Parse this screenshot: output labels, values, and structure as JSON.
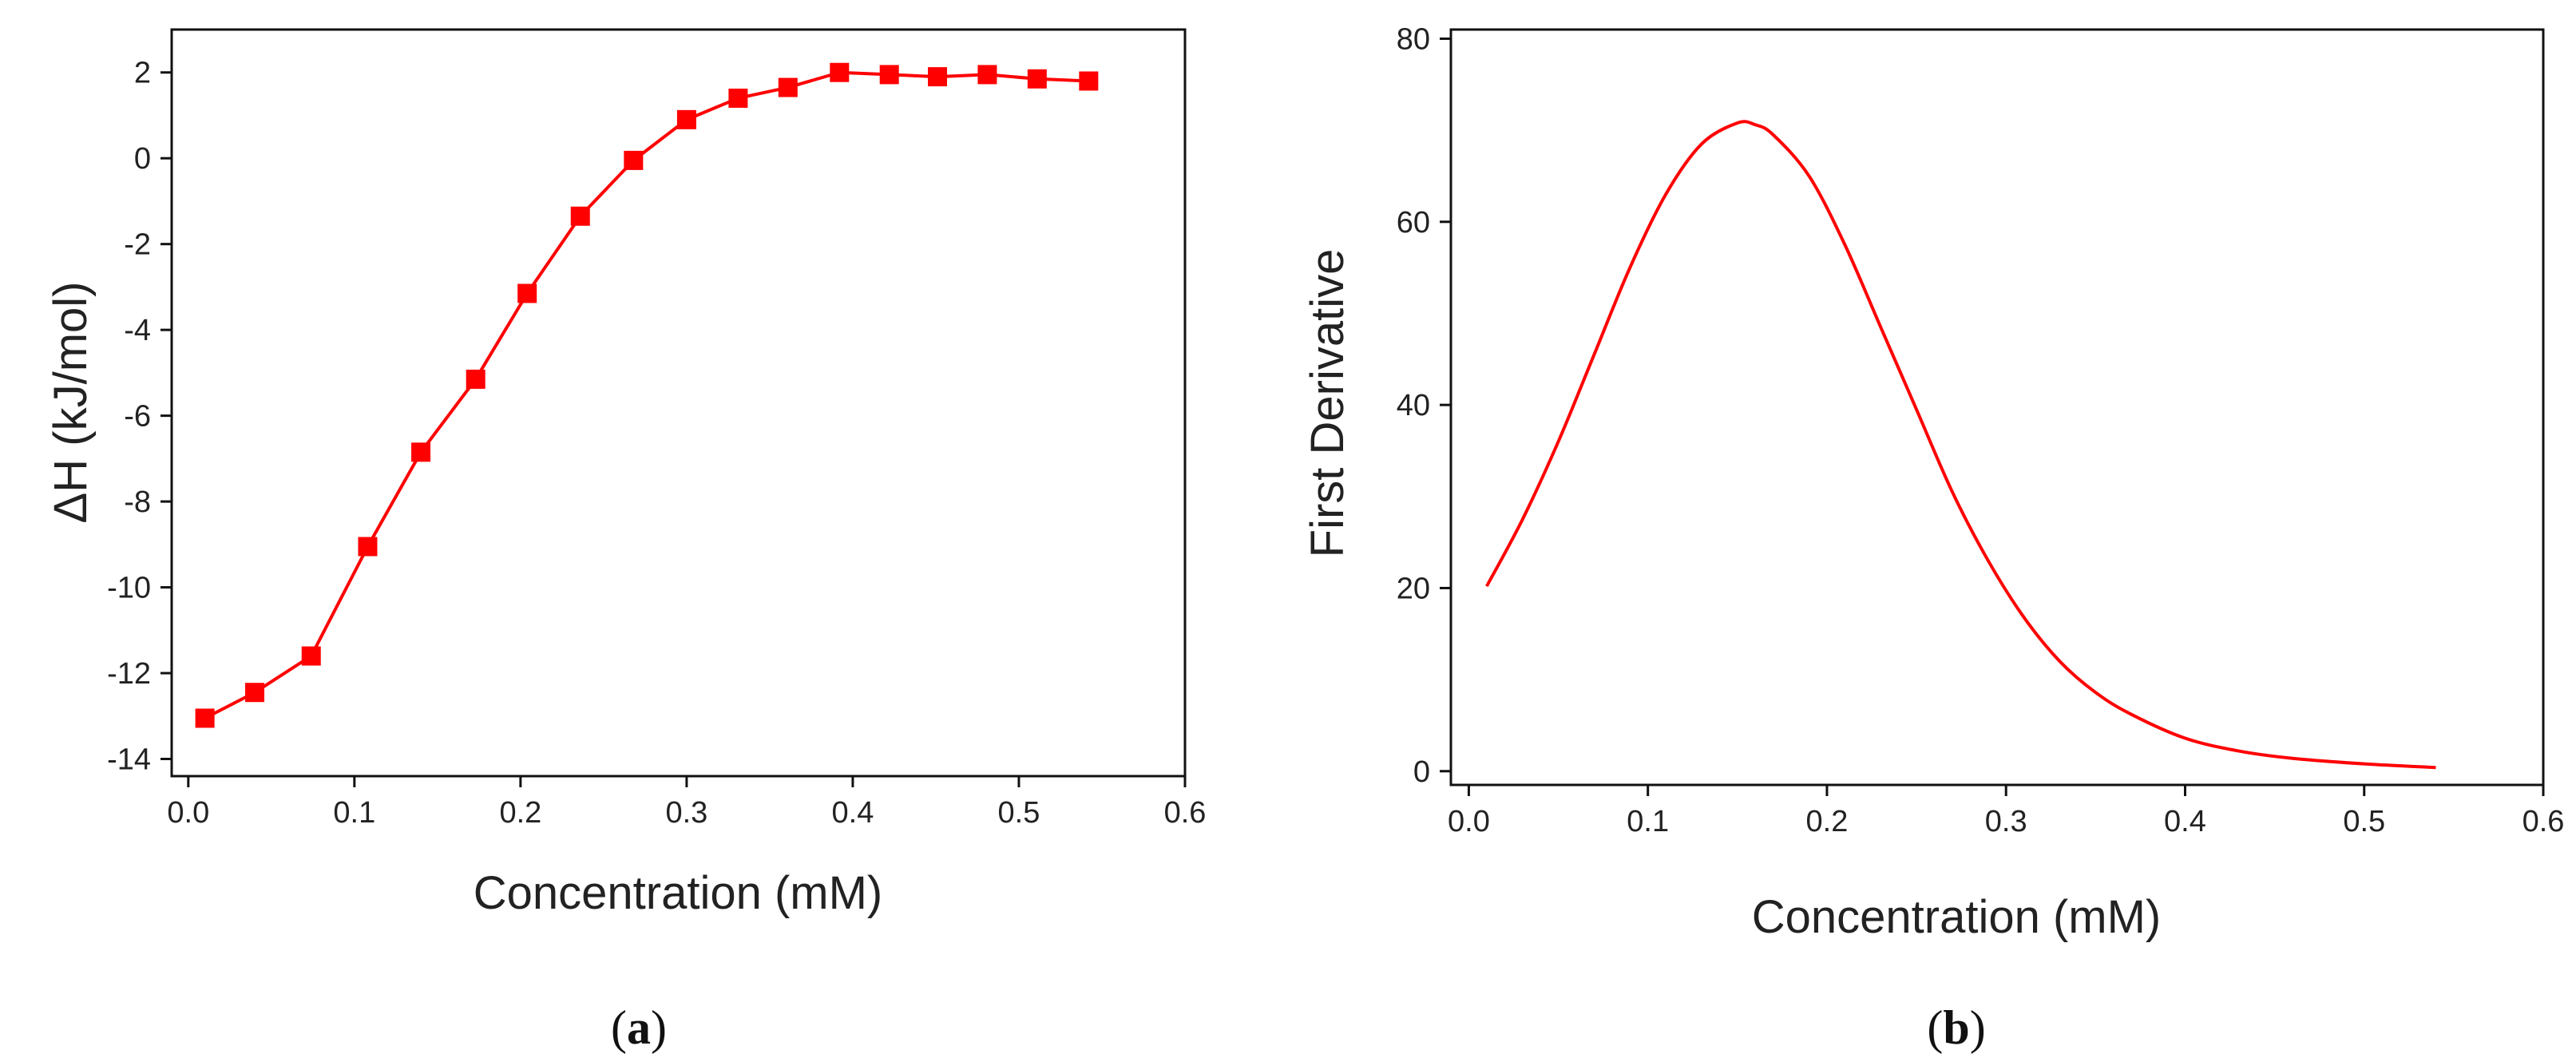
{
  "chart_data": [
    {
      "type": "line",
      "panel_label": "a",
      "xlabel": "Concentration (mM)",
      "ylabel": "ΔH (kJ/mol)",
      "xlim": [
        -0.01,
        0.6
      ],
      "ylim": [
        -14.4,
        3.0
      ],
      "xticks": [
        0.0,
        0.1,
        0.2,
        0.3,
        0.4,
        0.5,
        0.6
      ],
      "xtick_labels": [
        "0.0",
        "0.1",
        "0.2",
        "0.3",
        "0.4",
        "0.5",
        "0.6"
      ],
      "yticks": [
        2,
        0,
        -2,
        -4,
        -6,
        -8,
        -10,
        -12,
        -14
      ],
      "ytick_labels": [
        "2",
        "0",
        "-2",
        "-4",
        "-6",
        "-8",
        "-10",
        "-12",
        "-14"
      ],
      "marker": "square",
      "color": "#ff0000",
      "series": [
        {
          "name": "ΔH",
          "x": [
            0.01,
            0.04,
            0.074,
            0.108,
            0.14,
            0.173,
            0.204,
            0.236,
            0.268,
            0.3,
            0.331,
            0.361,
            0.392,
            0.422,
            0.451,
            0.481,
            0.511,
            0.542
          ],
          "y": [
            -13.05,
            -12.45,
            -11.6,
            -9.05,
            -6.85,
            -5.15,
            -3.15,
            -1.35,
            -0.05,
            0.9,
            1.4,
            1.65,
            2.0,
            1.95,
            1.9,
            1.95,
            1.85,
            1.8
          ]
        }
      ]
    },
    {
      "type": "line",
      "panel_label": "b",
      "xlabel": "Concentration (mM)",
      "ylabel": "First Derivative",
      "xlim": [
        -0.01,
        0.6
      ],
      "ylim": [
        -1.5,
        81
      ],
      "xticks": [
        0.0,
        0.1,
        0.2,
        0.3,
        0.4,
        0.5,
        0.6
      ],
      "xtick_labels": [
        "0.0",
        "0.1",
        "0.2",
        "0.3",
        "0.4",
        "0.5",
        "0.6"
      ],
      "yticks": [
        0,
        20,
        40,
        60,
        80
      ],
      "ytick_labels": [
        "0",
        "20",
        "40",
        "60",
        "80"
      ],
      "color": "#ff0000",
      "series": [
        {
          "name": "First Derivative",
          "x": [
            0.01,
            0.03,
            0.05,
            0.07,
            0.09,
            0.11,
            0.13,
            0.15,
            0.16,
            0.17,
            0.19,
            0.21,
            0.23,
            0.25,
            0.27,
            0.29,
            0.31,
            0.33,
            0.35,
            0.37,
            0.4,
            0.43,
            0.46,
            0.5,
            0.54
          ],
          "y": [
            20.2,
            27.5,
            36.0,
            45.5,
            55.0,
            63.0,
            68.5,
            70.8,
            70.6,
            69.5,
            65.0,
            57.5,
            48.5,
            39.5,
            30.5,
            23.0,
            16.8,
            12.0,
            8.6,
            6.2,
            3.6,
            2.2,
            1.4,
            0.8,
            0.4
          ]
        }
      ]
    }
  ]
}
